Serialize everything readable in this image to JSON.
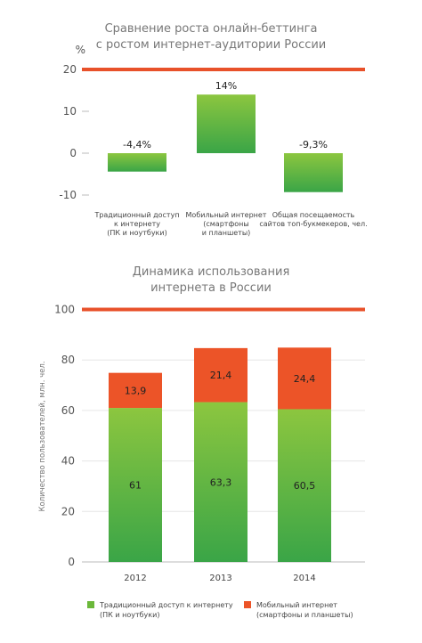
{
  "colors": {
    "accent_line": "#e8512a",
    "green_top": "#8cc63f",
    "green_bottom": "#3aa547",
    "mobile": "#ec5428",
    "grid": "#e6e6e6",
    "axis": "#bbbbbb"
  },
  "chart_data": [
    {
      "type": "bar",
      "title": [
        "Сравнение роста онлайн-беттинга",
        "с ростом интернет-аудитории России"
      ],
      "unit": "%",
      "ylim": [
        -10,
        20
      ],
      "yticks": [
        "20",
        "10",
        "0",
        "-10"
      ],
      "reference_line": 20,
      "categories": [
        [
          "Традиционный доступ",
          "к интернету",
          "(ПК и ноутбуки)"
        ],
        [
          "Мобильный интернет",
          "(смартфоны",
          "и планшеты)"
        ],
        [
          "Общая посещаемость",
          "сайтов топ-букмекеров, чел."
        ]
      ],
      "values": [
        -4.4,
        14,
        -9.3
      ],
      "value_labels": [
        "-4,4%",
        "14%",
        "-9,3%"
      ]
    },
    {
      "type": "bar",
      "stacked": true,
      "title": [
        "Динамика использования",
        "интернета в России"
      ],
      "ylabel": "Количество пользователей, млн. чел.",
      "ylim": [
        0,
        100
      ],
      "yticks": [
        "100",
        "80",
        "60",
        "40",
        "20",
        "0"
      ],
      "reference_line": 100,
      "categories": [
        "2012",
        "2013",
        "2014"
      ],
      "series": [
        {
          "name": [
            "Традиционный доступ к интернету",
            "(ПК и ноутбуки)"
          ],
          "values": [
            61,
            63.3,
            60.5
          ],
          "value_labels": [
            "61",
            "63,3",
            "60,5"
          ]
        },
        {
          "name": [
            "Мобильный интернет",
            "(смартфоны и планшеты)"
          ],
          "values": [
            13.9,
            21.4,
            24.4
          ],
          "value_labels": [
            "13,9",
            "21,4",
            "24,4"
          ]
        }
      ],
      "legend": "bottom"
    }
  ]
}
